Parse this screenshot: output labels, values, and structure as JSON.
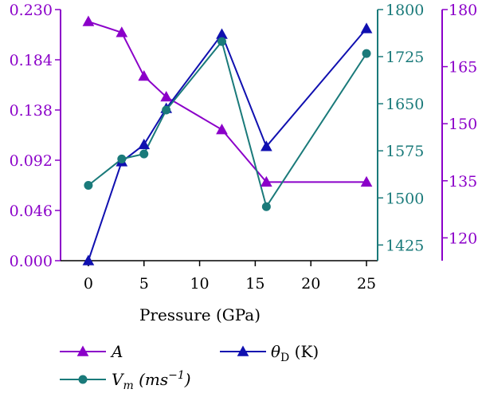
{
  "chart_data": {
    "type": "line",
    "xlabel": "Pressure (GPa)",
    "x_ticks": [
      "0",
      "5",
      "10",
      "15",
      "20",
      "25"
    ],
    "xlim": [
      -2.5,
      26
    ],
    "axes": {
      "left": {
        "ticks": [
          "0.000",
          "0.046",
          "0.092",
          "0.138",
          "0.184",
          "0.230"
        ],
        "ylim": [
          0,
          0.23
        ],
        "color": "#8B00C9"
      },
      "right1": {
        "ticks": [
          "1425",
          "1500",
          "1575",
          "1650",
          "1725",
          "1800"
        ],
        "ylim": [
          1400,
          1800
        ],
        "color": "#1A7A7A"
      },
      "right2": {
        "ticks": [
          "120",
          "135",
          "150",
          "165",
          "180"
        ],
        "ylim": [
          114,
          180
        ],
        "color": "#8B00C9"
      }
    },
    "series": [
      {
        "name": "A",
        "axis": "left",
        "marker": "triangle",
        "color": "#8B00C9",
        "x": [
          0,
          3,
          5,
          7,
          12,
          16,
          25
        ],
        "y": [
          0.219,
          0.209,
          0.169,
          0.15,
          0.12,
          0.072,
          0.072
        ]
      },
      {
        "name": "θD (K)",
        "axis": "right2",
        "marker": "triangle",
        "color": "#1010B0",
        "x": [
          0,
          3,
          5,
          7,
          12,
          16,
          25
        ],
        "y": [
          114,
          140,
          144.5,
          154,
          173.5,
          144,
          175
        ]
      },
      {
        "name": "Vm (ms-1)",
        "axis": "right1",
        "marker": "circle",
        "color": "#1A7A7A",
        "x": [
          0,
          3,
          5,
          7,
          12,
          16,
          25
        ],
        "y": [
          1520,
          1562,
          1570,
          1640,
          1749,
          1486,
          1730
        ]
      }
    ],
    "legend": {
      "placement": "bottom",
      "items": [
        {
          "series": 0,
          "main": "A",
          "sub": "",
          "tail": ""
        },
        {
          "series": 1,
          "main": "θ",
          "sub": "D",
          "tail": " (K)"
        },
        {
          "series": 2,
          "main": "V",
          "sub": "m",
          "tail": " (ms",
          "sup": "−1",
          "tail2": ")"
        }
      ]
    }
  }
}
